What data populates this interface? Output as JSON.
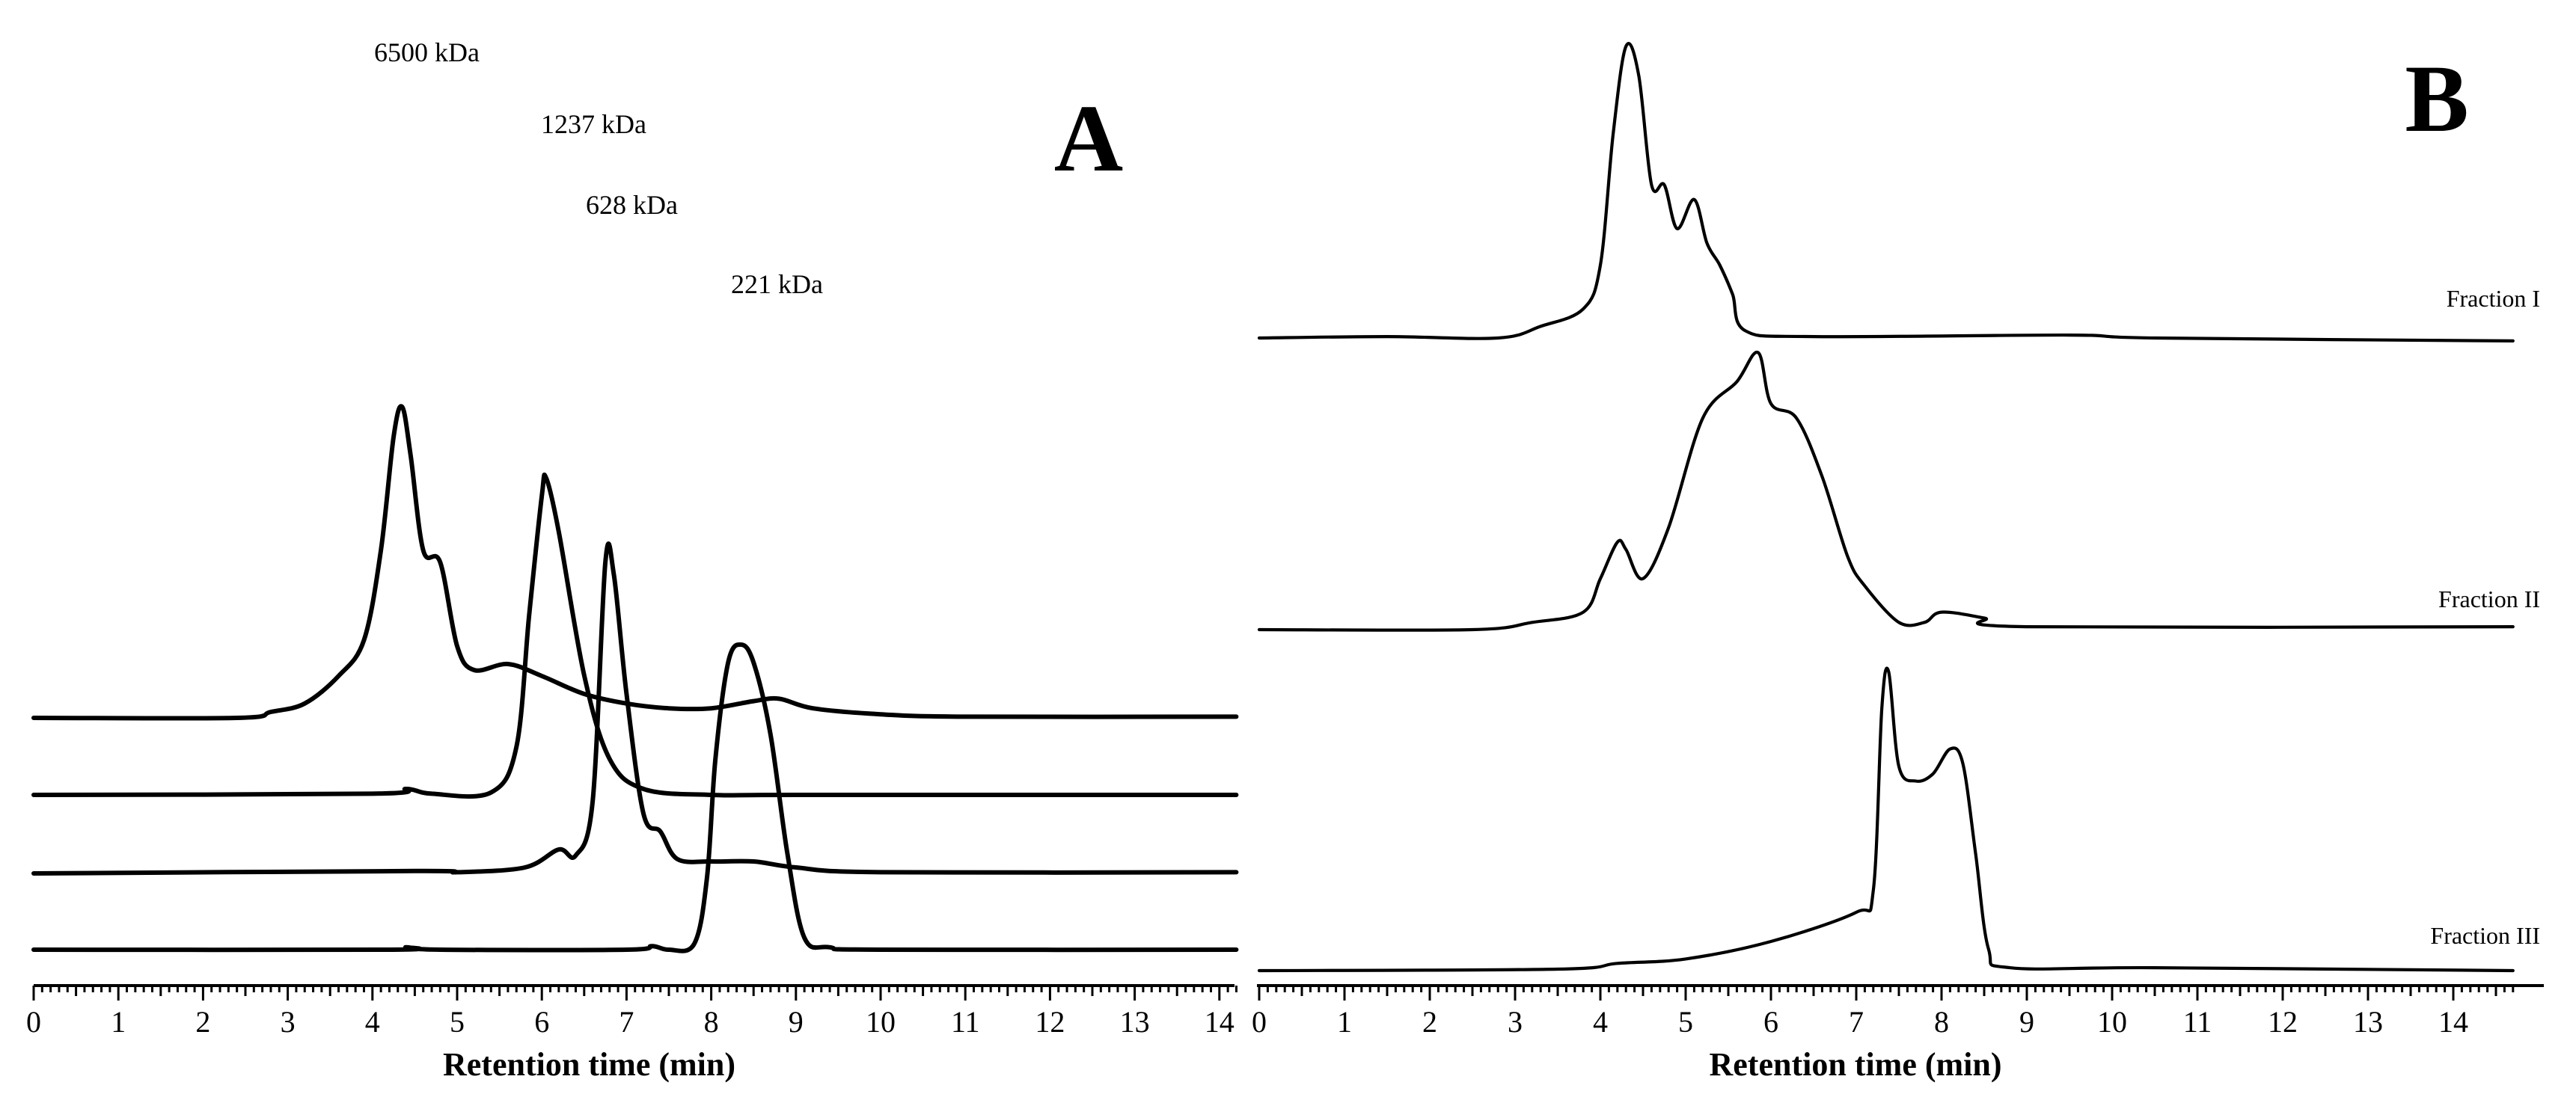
{
  "chart_data": [
    {
      "type": "line",
      "panel_label": "A",
      "xlabel": "Retention time (min)",
      "xlim": [
        0,
        14.2
      ],
      "x_ticks": [
        "0",
        "1",
        "2",
        "3",
        "4",
        "5",
        "6",
        "7",
        "8",
        "9",
        "10",
        "11",
        "12",
        "13",
        "14"
      ],
      "grid": false,
      "series": [
        {
          "peak_label": "6500 kDa",
          "points": [
            [
              0,
              0
            ],
            [
              2.4,
              0
            ],
            [
              2.8,
              0.05
            ],
            [
              3.2,
              0.12
            ],
            [
              3.6,
              0.35
            ],
            [
              3.9,
              0.65
            ],
            [
              4.1,
              1.4
            ],
            [
              4.25,
              2.35
            ],
            [
              4.35,
              2.6
            ],
            [
              4.45,
              2.2
            ],
            [
              4.6,
              1.4
            ],
            [
              4.8,
              1.3
            ],
            [
              5.0,
              0.6
            ],
            [
              5.2,
              0.4
            ],
            [
              5.6,
              0.45
            ],
            [
              6.0,
              0.35
            ],
            [
              6.5,
              0.2
            ],
            [
              7.0,
              0.12
            ],
            [
              7.5,
              0.08
            ],
            [
              8.0,
              0.08
            ],
            [
              8.5,
              0.14
            ],
            [
              8.8,
              0.16
            ],
            [
              9.2,
              0.08
            ],
            [
              10,
              0.03
            ],
            [
              11,
              0.01
            ],
            [
              14.2,
              0.01
            ]
          ]
        },
        {
          "peak_label": "1237 kDa",
          "points": [
            [
              0,
              0
            ],
            [
              4.0,
              0.01
            ],
            [
              4.4,
              0.05
            ],
            [
              4.7,
              0.01
            ],
            [
              5.4,
              0.02
            ],
            [
              5.7,
              0.4
            ],
            [
              5.85,
              1.5
            ],
            [
              6.0,
              2.5
            ],
            [
              6.05,
              2.65
            ],
            [
              6.2,
              2.2
            ],
            [
              6.5,
              1.0
            ],
            [
              6.8,
              0.3
            ],
            [
              7.2,
              0.05
            ],
            [
              8.0,
              0.0
            ],
            [
              9.0,
              0.0
            ],
            [
              14.2,
              0.0
            ]
          ]
        },
        {
          "peak_label": "628 kDa",
          "points": [
            [
              0,
              0
            ],
            [
              4.5,
              0.02
            ],
            [
              5.0,
              0.01
            ],
            [
              5.8,
              0.05
            ],
            [
              6.2,
              0.2
            ],
            [
              6.4,
              0.15
            ],
            [
              6.6,
              0.6
            ],
            [
              6.75,
              2.6
            ],
            [
              6.85,
              2.5
            ],
            [
              7.0,
              1.5
            ],
            [
              7.2,
              0.5
            ],
            [
              7.4,
              0.35
            ],
            [
              7.6,
              0.12
            ],
            [
              8.0,
              0.1
            ],
            [
              8.5,
              0.1
            ],
            [
              9.0,
              0.05
            ],
            [
              10,
              0.01
            ],
            [
              14.2,
              0.01
            ]
          ]
        },
        {
          "peak_label": "221 kDa",
          "points": [
            [
              0,
              0
            ],
            [
              4.2,
              0.0
            ],
            [
              4.4,
              0.02
            ],
            [
              4.8,
              0.0
            ],
            [
              7.0,
              0.0
            ],
            [
              7.3,
              0.03
            ],
            [
              7.5,
              0.0
            ],
            [
              7.8,
              0.05
            ],
            [
              7.95,
              0.6
            ],
            [
              8.05,
              1.6
            ],
            [
              8.2,
              2.4
            ],
            [
              8.35,
              2.55
            ],
            [
              8.5,
              2.4
            ],
            [
              8.7,
              1.8
            ],
            [
              8.9,
              0.8
            ],
            [
              9.1,
              0.1
            ],
            [
              9.4,
              0.02
            ],
            [
              10,
              0.0
            ],
            [
              14.2,
              0.0
            ]
          ]
        }
      ]
    },
    {
      "type": "line",
      "panel_label": "B",
      "xlabel": "Retention time (min)",
      "xlim": [
        0,
        14.7
      ],
      "x_ticks": [
        "0",
        "1",
        "2",
        "3",
        "4",
        "5",
        "6",
        "7",
        "8",
        "9",
        "10",
        "11",
        "12",
        "13",
        "14"
      ],
      "grid": false,
      "series": [
        {
          "name": "Fraction I",
          "points": [
            [
              0,
              0.0
            ],
            [
              1.5,
              0.01
            ],
            [
              2.8,
              0.0
            ],
            [
              3.3,
              0.08
            ],
            [
              3.8,
              0.2
            ],
            [
              4.0,
              0.5
            ],
            [
              4.15,
              1.4
            ],
            [
              4.3,
              2.0
            ],
            [
              4.45,
              1.8
            ],
            [
              4.6,
              1.05
            ],
            [
              4.75,
              1.05
            ],
            [
              4.9,
              0.75
            ],
            [
              5.1,
              0.95
            ],
            [
              5.25,
              0.65
            ],
            [
              5.4,
              0.5
            ],
            [
              5.55,
              0.3
            ],
            [
              5.7,
              0.05
            ],
            [
              6.5,
              0.01
            ],
            [
              9.5,
              0.02
            ],
            [
              10.5,
              0.0
            ],
            [
              14.7,
              -0.02
            ]
          ]
        },
        {
          "name": "Fraction II",
          "points": [
            [
              0,
              0.0
            ],
            [
              2.5,
              0.0
            ],
            [
              3.2,
              0.05
            ],
            [
              3.8,
              0.12
            ],
            [
              4.0,
              0.35
            ],
            [
              4.2,
              0.6
            ],
            [
              4.3,
              0.55
            ],
            [
              4.5,
              0.35
            ],
            [
              4.8,
              0.7
            ],
            [
              5.2,
              1.45
            ],
            [
              5.6,
              1.7
            ],
            [
              5.85,
              1.9
            ],
            [
              6.0,
              1.55
            ],
            [
              6.3,
              1.45
            ],
            [
              6.6,
              1.05
            ],
            [
              6.9,
              0.5
            ],
            [
              7.1,
              0.3
            ],
            [
              7.5,
              0.05
            ],
            [
              7.8,
              0.05
            ],
            [
              8.0,
              0.12
            ],
            [
              8.5,
              0.08
            ],
            [
              9.0,
              0.02
            ],
            [
              14.7,
              0.02
            ]
          ]
        },
        {
          "name": "Fraction III",
          "points": [
            [
              0,
              0.0
            ],
            [
              3.5,
              0.01
            ],
            [
              4.2,
              0.05
            ],
            [
              5.0,
              0.08
            ],
            [
              6.0,
              0.2
            ],
            [
              7.0,
              0.4
            ],
            [
              7.2,
              0.55
            ],
            [
              7.3,
              1.8
            ],
            [
              7.38,
              2.05
            ],
            [
              7.5,
              1.4
            ],
            [
              7.7,
              1.3
            ],
            [
              7.9,
              1.35
            ],
            [
              8.1,
              1.52
            ],
            [
              8.25,
              1.42
            ],
            [
              8.4,
              0.8
            ],
            [
              8.55,
              0.15
            ],
            [
              8.8,
              0.02
            ],
            [
              10.5,
              0.02
            ],
            [
              14.7,
              0.0
            ]
          ]
        }
      ]
    }
  ]
}
